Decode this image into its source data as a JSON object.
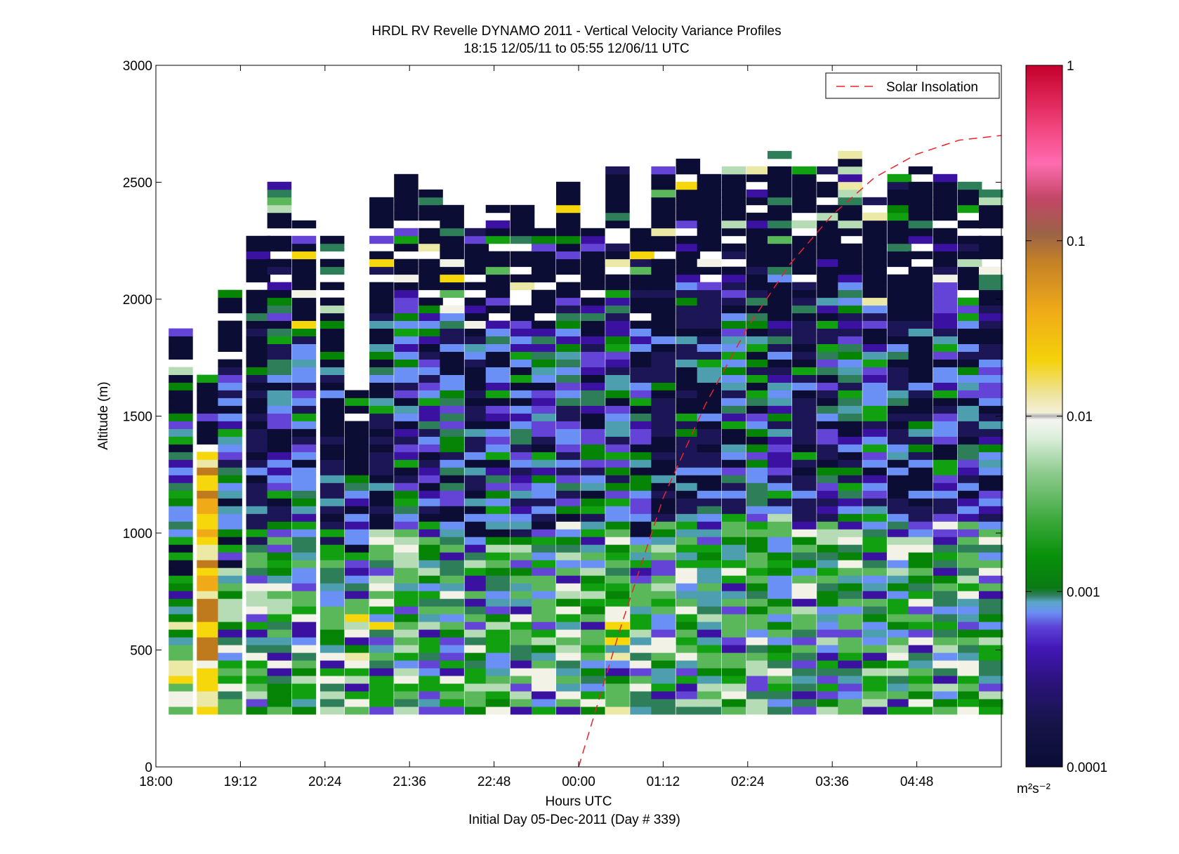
{
  "chart_data": {
    "type": "heatmap",
    "title": "HRDL RV Revelle DYNAMO 2011 - Vertical Velocity Variance Profiles",
    "subtitle": "18:15 12/05/11 to 05:55 12/06/11  UTC",
    "xlabel": "Hours UTC",
    "xlabel2": "Initial Day 05-Dec-2011 (Day # 339)",
    "ylabel": "Altitude (m)",
    "x_ticks": [
      "18:00",
      "19:12",
      "20:24",
      "21:36",
      "22:48",
      "00:00",
      "01:12",
      "02:24",
      "03:36",
      "04:48"
    ],
    "x_tick_hours": [
      0,
      1.2,
      2.4,
      3.6,
      4.8,
      6.0,
      7.2,
      8.4,
      9.6,
      10.8
    ],
    "xlim_hours_since_1800": [
      0,
      12
    ],
    "y_ticks": [
      "0",
      "500",
      "1000",
      "1500",
      "2000",
      "2500",
      "3000"
    ],
    "y_tick_values": [
      0,
      500,
      1000,
      1500,
      2000,
      2500,
      3000
    ],
    "ylim": [
      0,
      3000
    ],
    "legend": {
      "label": "Solar Insolation",
      "placement": "top-right",
      "style": "red dashed line",
      "color": "#e8242b"
    },
    "colorbar": {
      "scale": "log",
      "range": [
        0.0001,
        1
      ],
      "tick_labels": [
        "1",
        "0.1",
        "0.01",
        "0.001",
        "0.0001"
      ],
      "tick_values": [
        1,
        0.1,
        0.01,
        0.001,
        0.0001
      ],
      "units_label": "m²s⁻²",
      "colormap": [
        "#0b0d35",
        "#1c1556",
        "#3a11a0",
        "#6344d6",
        "#6a8ff5",
        "#4d9fb0",
        "#2e7e5a",
        "#058405",
        "#10a010",
        "#5ab85a",
        "#b6dcb6",
        "#f2f2e6",
        "#ece9a6",
        "#f5d70c",
        "#f0aa18",
        "#c07a1e",
        "#9a5a40",
        "#e0326e",
        "#ff70b2",
        "#c7002c"
      ]
    },
    "series_note": "Each column is one ~12-minute vertical profile from 18:15 to 05:55 UTC; cell colour = vertical velocity variance. Altitude gates ~30 m from ~225 m upward; blank cells = no data.",
    "profiles_summary": [
      {
        "hour": 0.35,
        "top_m": 1870,
        "dominant": "yellow/green then dark aloft"
      },
      {
        "hour": 0.75,
        "top_m": 1650,
        "dominant": "yellow/orange"
      },
      {
        "hour": 1.05,
        "top_m": 2010,
        "dominant": "green/purple/dark"
      },
      {
        "hour": 1.45,
        "top_m": 2250,
        "dominant": "green/purple"
      },
      {
        "hour": 1.75,
        "top_m": 2480,
        "dominant": "green/purple/dark"
      },
      {
        "hour": 2.1,
        "top_m": 2330,
        "dominant": "purple/blue/dark"
      },
      {
        "hour": 2.5,
        "top_m": 2270,
        "dominant": "dark/purple"
      },
      {
        "hour": 2.85,
        "top_m": 1600,
        "dominant": "green/yellow low, dark aloft"
      },
      {
        "hour": 3.2,
        "top_m": 2410,
        "dominant": "green/yellow"
      },
      {
        "hour": 3.55,
        "top_m": 2520,
        "dominant": "green/blue/dark"
      },
      {
        "hour": 3.9,
        "top_m": 2440,
        "dominant": "green/blue/dark"
      },
      {
        "hour": 4.2,
        "top_m": 2390,
        "dominant": "green/dark"
      },
      {
        "hour": 4.55,
        "top_m": 2300,
        "dominant": "dark/purple"
      },
      {
        "hour": 4.85,
        "top_m": 2380,
        "dominant": "green/purple/dark"
      },
      {
        "hour": 5.2,
        "top_m": 2380,
        "dominant": "green/purple/dark"
      },
      {
        "hour": 5.5,
        "top_m": 2300,
        "dominant": "purple/dark"
      },
      {
        "hour": 5.85,
        "top_m": 2490,
        "dominant": "green/purple/dark"
      },
      {
        "hour": 6.2,
        "top_m": 2290,
        "dominant": "green/blue/dark"
      },
      {
        "hour": 6.55,
        "top_m": 2550,
        "dominant": "green/yellow/dark"
      },
      {
        "hour": 6.9,
        "top_m": 2300,
        "dominant": "green/purple/dark"
      },
      {
        "hour": 7.2,
        "top_m": 2560,
        "dominant": "green/purple"
      },
      {
        "hour": 7.55,
        "top_m": 2580,
        "dominant": "green/yellow/purple"
      },
      {
        "hour": 7.85,
        "top_m": 2530,
        "dominant": "green/purple"
      },
      {
        "hour": 8.2,
        "top_m": 2560,
        "dominant": "green/blue/dark"
      },
      {
        "hour": 8.55,
        "top_m": 2540,
        "dominant": "green/blue/dark"
      },
      {
        "hour": 8.85,
        "top_m": 2610,
        "dominant": "green/dark"
      },
      {
        "hour": 9.2,
        "top_m": 2560,
        "dominant": "purple/green"
      },
      {
        "hour": 9.55,
        "top_m": 2540,
        "dominant": "purple/green/dark"
      },
      {
        "hour": 9.85,
        "top_m": 2610,
        "dominant": "green/purple/dark"
      },
      {
        "hour": 10.2,
        "top_m": 2450,
        "dominant": "green/blue/dark"
      },
      {
        "hour": 10.55,
        "top_m": 2520,
        "dominant": "green/purple"
      },
      {
        "hour": 10.85,
        "top_m": 2540,
        "dominant": "green/blue/purple"
      },
      {
        "hour": 11.2,
        "top_m": 2510,
        "dominant": "green/purple/dark"
      },
      {
        "hour": 11.55,
        "top_m": 2500,
        "dominant": "green/purple/dark"
      },
      {
        "hour": 11.85,
        "top_m": 2440,
        "dominant": "green/blue/dark"
      }
    ],
    "solar_insolation_curve": {
      "description": "red dashed line rising from 0 m at ~00:00 to ~2700 m at ~05:55 (scaled solar insolation)",
      "points": [
        {
          "hour": 6.0,
          "y": 0
        },
        {
          "hour": 6.6,
          "y": 600
        },
        {
          "hour": 7.2,
          "y": 1150
        },
        {
          "hour": 7.8,
          "y": 1550
        },
        {
          "hour": 8.4,
          "y": 1880
        },
        {
          "hour": 9.0,
          "y": 2150
        },
        {
          "hour": 9.6,
          "y": 2360
        },
        {
          "hour": 10.2,
          "y": 2520
        },
        {
          "hour": 10.8,
          "y": 2620
        },
        {
          "hour": 11.4,
          "y": 2680
        },
        {
          "hour": 12.0,
          "y": 2700
        }
      ]
    }
  }
}
